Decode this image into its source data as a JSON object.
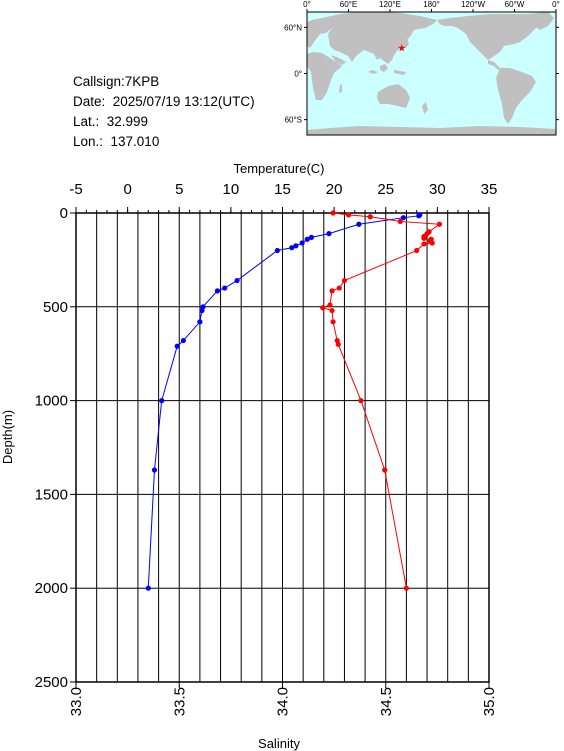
{
  "info": {
    "callsign": "Callsign:7KPB",
    "date": "Date:  2025/07/19 13:12(UTC)",
    "lat": "Lat.:  32.999",
    "lon": "Lon.:  137.010"
  },
  "map": {
    "lon_labels": [
      "0°",
      "60°E",
      "120°E",
      "180°",
      "120°W",
      "60°W",
      "0°"
    ],
    "lat_labels": [
      "60°N",
      "0°",
      "60°S"
    ],
    "ocean_color": "#ccffff",
    "land_color": "#c0c0c0",
    "marker": {
      "lat": 32.999,
      "lon": 137.01,
      "color": "#ff0000"
    }
  },
  "chart_data": {
    "type": "line",
    "top_axis": {
      "label": "Temperature(C)",
      "range": [
        -5,
        35
      ],
      "ticks": [
        "-5",
        "0",
        "5",
        "10",
        "15",
        "20",
        "25",
        "30",
        "35"
      ]
    },
    "bottom_axis": {
      "label": "Salinity",
      "range": [
        33.0,
        35.0
      ],
      "ticks": [
        "33.0",
        "33.5",
        "34.0",
        "34.5",
        "35.0"
      ]
    },
    "y_axis": {
      "label": "Depth(m)",
      "range": [
        0,
        2500
      ],
      "inverted": true,
      "ticks": [
        "0",
        "500",
        "1000",
        "1500",
        "2000",
        "2500"
      ]
    },
    "grid": true,
    "series": [
      {
        "quantity": "Temperature",
        "color": "#0000ff",
        "points": [
          [
            28.3,
            10
          ],
          [
            28.2,
            15
          ],
          [
            26.7,
            25
          ],
          [
            22.4,
            60
          ],
          [
            19.5,
            110
          ],
          [
            17.8,
            130
          ],
          [
            17.4,
            140
          ],
          [
            16.9,
            160
          ],
          [
            16.3,
            175
          ],
          [
            15.9,
            185
          ],
          [
            14.5,
            200
          ],
          [
            10.6,
            360
          ],
          [
            9.4,
            400
          ],
          [
            8.7,
            415
          ],
          [
            7.3,
            500
          ],
          [
            7.2,
            520
          ],
          [
            7.0,
            580
          ],
          [
            5.4,
            680
          ],
          [
            4.8,
            710
          ],
          [
            3.3,
            1000
          ],
          [
            2.6,
            1370
          ],
          [
            2.0,
            2000
          ]
        ]
      },
      {
        "quantity": "Salinity",
        "color": "#ff0000",
        "points": [
          [
            34.245,
            0
          ],
          [
            34.32,
            10
          ],
          [
            34.425,
            20
          ],
          [
            34.57,
            45
          ],
          [
            34.76,
            60
          ],
          [
            34.71,
            100
          ],
          [
            34.7,
            110
          ],
          [
            34.685,
            125
          ],
          [
            34.685,
            135
          ],
          [
            34.72,
            140
          ],
          [
            34.715,
            150
          ],
          [
            34.725,
            160
          ],
          [
            34.685,
            165
          ],
          [
            34.65,
            200
          ],
          [
            34.3,
            360
          ],
          [
            34.275,
            400
          ],
          [
            34.24,
            415
          ],
          [
            34.23,
            490
          ],
          [
            34.195,
            505
          ],
          [
            34.24,
            520
          ],
          [
            34.245,
            580
          ],
          [
            34.265,
            680
          ],
          [
            34.27,
            700
          ],
          [
            34.38,
            1000
          ],
          [
            34.495,
            1370
          ],
          [
            34.6,
            2000
          ]
        ]
      }
    ]
  }
}
